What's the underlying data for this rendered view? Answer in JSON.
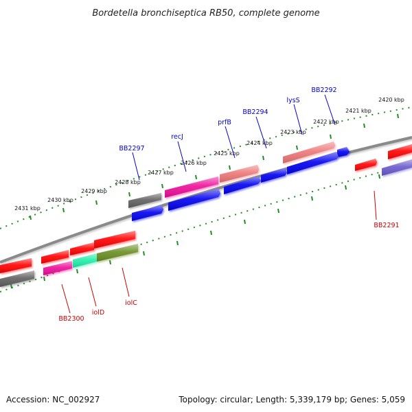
{
  "title": "Bordetella bronchiseptica RB50, complete genome",
  "ticks": [
    "2431 kbp",
    "2430 kbp",
    "2429 kbp",
    "2428 kbp",
    "2427 kbp",
    "2426 kbp",
    "2425 kbp",
    "2424 kbp",
    "2423 kbp",
    "2422 kbp",
    "2421 kbp",
    "2420 kbp"
  ],
  "labels": {
    "bb2297": "BB2297",
    "recj": "recJ",
    "prfb": "prfB",
    "bb2294": "BB2294",
    "lyss": "lysS",
    "bb2292": "BB2292",
    "bb2291": "BB2291",
    "bb2300": "BB2300",
    "iold": "iolD",
    "iolc": "iolC"
  },
  "footer": {
    "accession": "Accession: NC_002927",
    "summary": "Topology: circular; Length: 5,339,179 bp; Genes: 5,059"
  },
  "colors": {
    "backbone": "#808080",
    "tick": "#228b22",
    "red": "#ff0000",
    "blue": "#0000ee",
    "magenta": "#ee1199",
    "gray": "#606060",
    "salmon": "#ee7777",
    "spring_green": "#22eeaa",
    "olive": "#6b8e23",
    "slate_blue": "#6a5acd",
    "label_blue": "#0000cc",
    "label_red": "#cc0000"
  }
}
